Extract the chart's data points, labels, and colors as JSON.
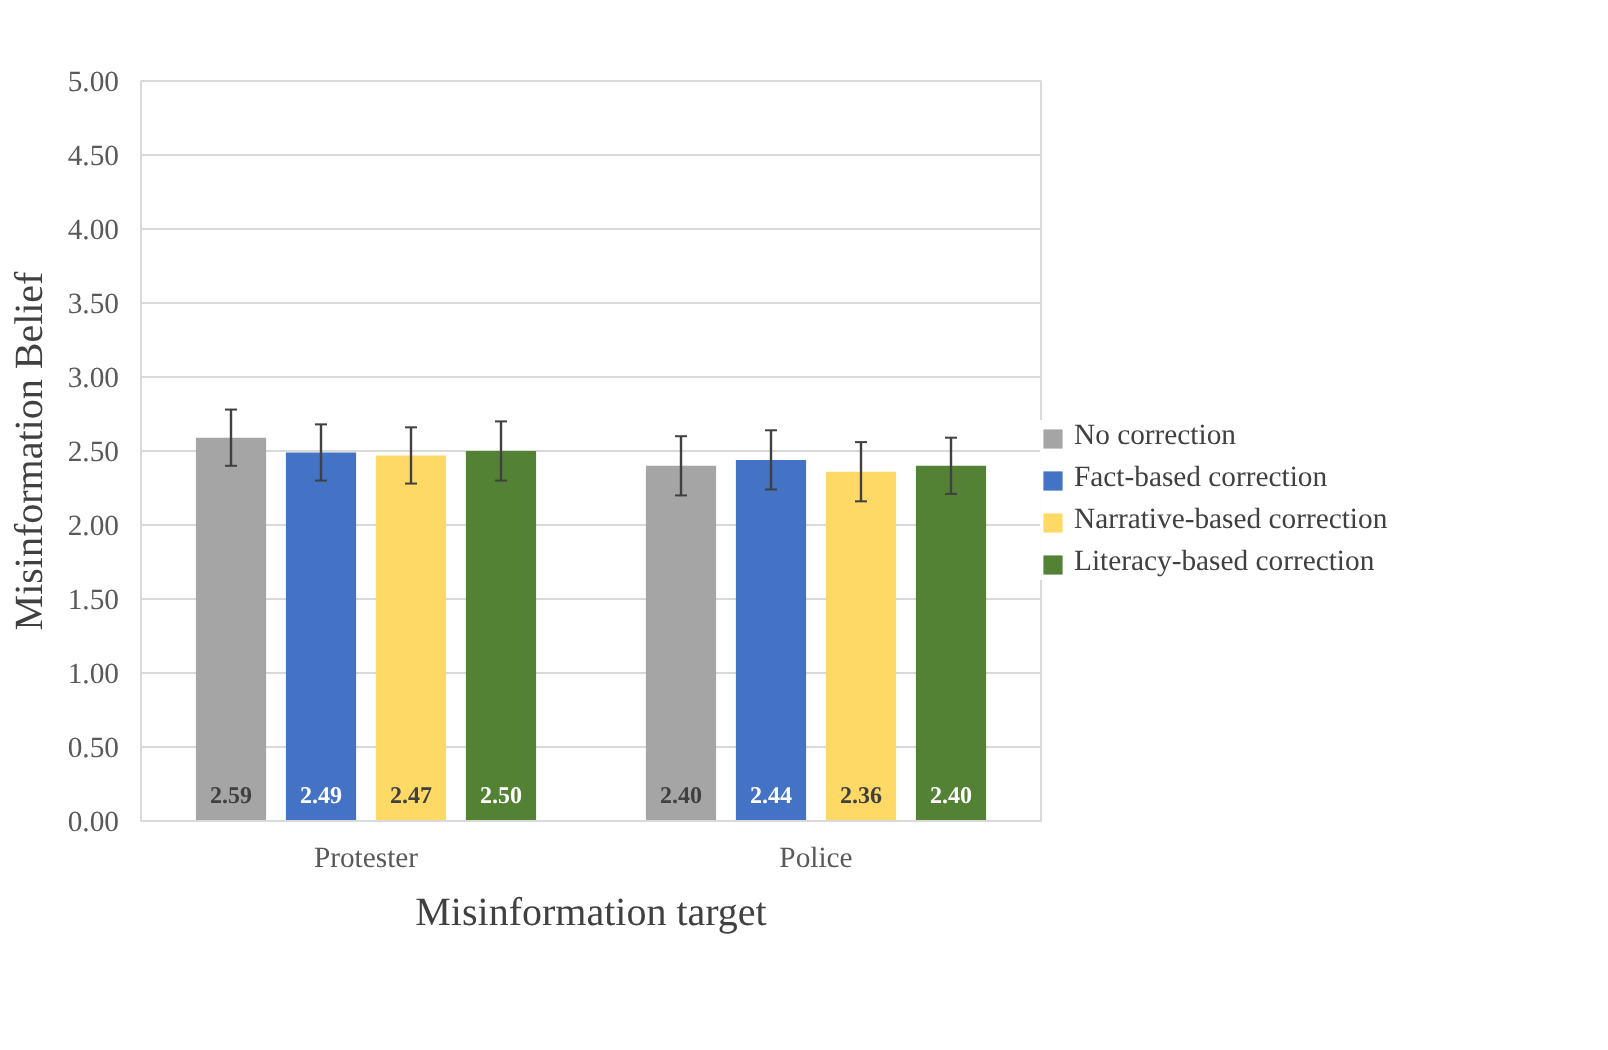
{
  "chart_data": {
    "type": "bar",
    "xlabel": "Misinformation target",
    "ylabel": "Misinformation Belief",
    "categories": [
      "Protester",
      "Police"
    ],
    "series": [
      {
        "name": "No correction",
        "color": "#a5a5a5",
        "values": [
          2.59,
          2.4
        ],
        "errors": [
          0.19,
          0.2
        ],
        "value_labels": [
          "2.59",
          "2.40"
        ]
      },
      {
        "name": "Fact-based correction",
        "color": "#4472c4",
        "values": [
          2.49,
          2.44
        ],
        "errors": [
          0.19,
          0.2
        ],
        "value_labels": [
          "2.49",
          "2.44"
        ]
      },
      {
        "name": "Narrative-based correction",
        "color": "#ffd966",
        "values": [
          2.47,
          2.36
        ],
        "errors": [
          0.19,
          0.2
        ],
        "value_labels": [
          "2.47",
          "2.36"
        ]
      },
      {
        "name": "Literacy-based correction",
        "color": "#548235",
        "values": [
          2.5,
          2.4
        ],
        "errors": [
          0.2,
          0.19
        ],
        "value_labels": [
          "2.50",
          "2.40"
        ]
      }
    ],
    "ylim": [
      0,
      5
    ],
    "yticks": [
      {
        "value": 0,
        "label": "0.00"
      },
      {
        "value": 0.5,
        "label": "0.50"
      },
      {
        "value": 1,
        "label": "1.00"
      },
      {
        "value": 1.5,
        "label": "1.50"
      },
      {
        "value": 2,
        "label": "2.00"
      },
      {
        "value": 2.5,
        "label": "2.50"
      },
      {
        "value": 3,
        "label": "3.00"
      },
      {
        "value": 3.5,
        "label": "3.50"
      },
      {
        "value": 4,
        "label": "4.00"
      },
      {
        "value": 4.5,
        "label": "4.50"
      },
      {
        "value": 5,
        "label": "5.00"
      }
    ],
    "grid": "y",
    "legend": "right"
  }
}
